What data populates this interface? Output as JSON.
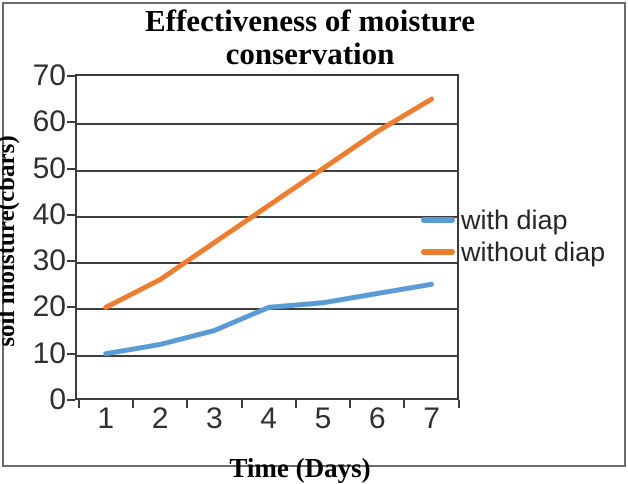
{
  "chart_data": {
    "type": "line",
    "title": "Effectiveness of moisture conservation",
    "title_lines": [
      "Effectiveness of moisture",
      "conservation"
    ],
    "xlabel": "Time (Days)",
    "ylabel": "soil moisture(cbars)",
    "x": [
      1,
      2,
      3,
      4,
      5,
      6,
      7
    ],
    "series": [
      {
        "name": "with diap",
        "color": "#5B9BD5",
        "values": [
          10,
          12,
          15,
          20,
          21,
          23,
          25
        ]
      },
      {
        "name": "without diap",
        "color": "#ED7D31",
        "values": [
          20,
          26,
          34,
          42,
          50,
          58,
          65
        ]
      }
    ],
    "ylim": [
      0,
      70
    ],
    "ytick_step": 10,
    "grid": true,
    "legend_position": "right",
    "colors": {
      "grid": "#3f3f3f",
      "axis_text": "#303030",
      "title_text": "#000000"
    }
  }
}
